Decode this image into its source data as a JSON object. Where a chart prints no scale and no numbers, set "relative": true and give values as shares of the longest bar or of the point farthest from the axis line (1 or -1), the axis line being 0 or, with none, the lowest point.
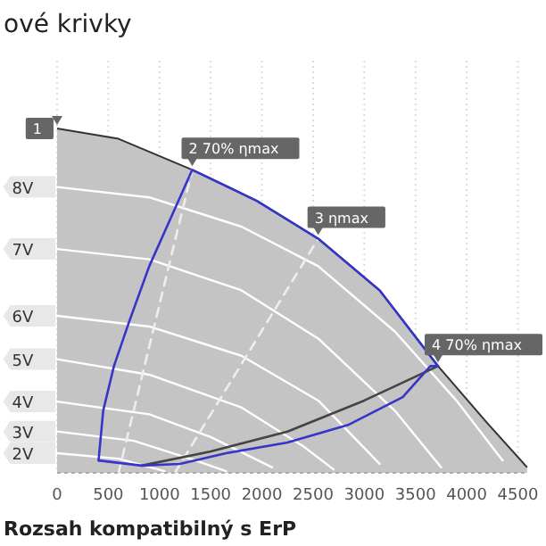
{
  "chart_data": {
    "type": "line",
    "title": "ové krivky",
    "relative": true,
    "xlim": [
      0,
      4600
    ],
    "xticks": [
      0,
      500,
      1000,
      1500,
      2000,
      2500,
      3000,
      3500,
      4000,
      4500
    ],
    "grid": "x",
    "legend": false,
    "marker": "none",
    "series": [
      {
        "type": "area",
        "color": "#333333",
        "x": [
          0,
          600,
          1320,
          1950,
          2550,
          3150,
          3720,
          4200,
          4590
        ],
        "values": [
          1,
          0.97,
          0.88,
          0.79,
          0.68,
          0.53,
          0.31,
          0.145,
          0.016
        ]
      },
      {
        "name": "8V",
        "color": "#ffffff",
        "x": [
          0,
          900,
          1800,
          2550,
          3300,
          3900,
          4350
        ],
        "values": [
          0.83,
          0.8,
          0.715,
          0.6,
          0.41,
          0.21,
          0.036
        ]
      },
      {
        "name": "7V",
        "color": "#ffffff",
        "x": [
          0,
          900,
          1800,
          2550,
          3300,
          3750
        ],
        "values": [
          0.65,
          0.62,
          0.53,
          0.39,
          0.18,
          0.016
        ]
      },
      {
        "name": "6V",
        "color": "#ffffff",
        "x": [
          0,
          900,
          1800,
          2550,
          3150
        ],
        "values": [
          0.456,
          0.425,
          0.34,
          0.21,
          0.026
        ]
      },
      {
        "name": "5V",
        "color": "#ffffff",
        "x": [
          0,
          900,
          1800,
          2400,
          2700
        ],
        "values": [
          0.33,
          0.285,
          0.19,
          0.078,
          0.01
        ]
      },
      {
        "name": "4V",
        "color": "#ffffff",
        "x": [
          0,
          900,
          1500,
          2100
        ],
        "values": [
          0.207,
          0.17,
          0.104,
          0.016
        ]
      },
      {
        "name": "3V",
        "color": "#ffffff",
        "x": [
          0,
          750,
          1350,
          1650
        ],
        "values": [
          0.12,
          0.093,
          0.036,
          0.005
        ]
      },
      {
        "name": "2V",
        "color": "#ffffff",
        "x": [
          0,
          600,
          1050
        ],
        "values": [
          0.057,
          0.041,
          0.005
        ]
      },
      {
        "color": "#eeeeee",
        "line_style": "dashed",
        "x": [
          600,
          1320
        ],
        "values": [
          0,
          0.88
        ]
      },
      {
        "color": "#eeeeee",
        "line_style": "dashed",
        "x": [
          1150,
          2550
        ],
        "values": [
          0,
          0.68
        ]
      },
      {
        "color": "#444444",
        "x": [
          825,
          1500,
          2250,
          3000,
          3720
        ],
        "values": [
          0.021,
          0.062,
          0.12,
          0.21,
          0.31
        ]
      },
      {
        "color": "#3535c8",
        "x": [
          405,
          825,
          1200,
          1650,
          2250,
          2850,
          3375,
          3645,
          3720
        ],
        "values": [
          0.036,
          0.021,
          0.026,
          0.057,
          0.088,
          0.14,
          0.22,
          0.31,
          0.31
        ]
      },
      {
        "color": "#3535c8",
        "x": [
          405,
          450,
          555,
          705,
          900,
          1125,
          1320,
          1950,
          2550,
          3150,
          3720
        ],
        "values": [
          0.036,
          0.18,
          0.31,
          0.44,
          0.6,
          0.75,
          0.88,
          0.79,
          0.68,
          0.53,
          0.31
        ]
      }
    ],
    "annotations": [
      {
        "text": "1",
        "x": 0,
        "y": 1
      },
      {
        "text": "2 70% ηmax",
        "x": 1320,
        "y": 0.88
      },
      {
        "text": "3 ηmax",
        "x": 2550,
        "y": 0.68
      },
      {
        "text": "4 70% ηmax",
        "x": 3720,
        "y": 0.31
      },
      "Rozsah kompatibilný s ErP"
    ]
  }
}
